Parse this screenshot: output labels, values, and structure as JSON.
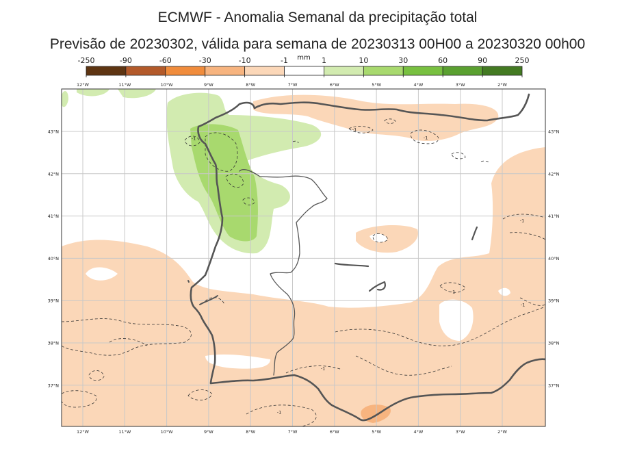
{
  "title": "ECMWF - Anomalia Semanal da precipitação total",
  "subtitle": "Previsão de 20230302, válida para semana de 20230313 00H00 a 20230320 00h00",
  "legend": {
    "unit": "mm",
    "ticks": [
      "-250",
      "-90",
      "-60",
      "-30",
      "-10",
      "-1",
      "1",
      "10",
      "30",
      "60",
      "90",
      "250"
    ],
    "colors": [
      "#5e3512",
      "#b35a2a",
      "#f08c3c",
      "#f7b47f",
      "#fbd7b8",
      "#ffffff",
      "#d2ebb0",
      "#a8d96e",
      "#78c040",
      "#5aa030",
      "#437a22"
    ]
  },
  "map": {
    "lon_labels": [
      "12°W",
      "11°W",
      "10°W",
      "9°W",
      "8°W",
      "7°W",
      "6°W",
      "5°W",
      "4°W",
      "3°W",
      "2°W"
    ],
    "lat_labels": [
      "43°N",
      "42°N",
      "41°N",
      "40°N",
      "39°N",
      "38°N",
      "37°N"
    ],
    "contour_label": "-1",
    "colors": {
      "dry_light": "#fbd7b8",
      "dry_medium": "#f7b47f",
      "wet_light": "#d2ebb0",
      "wet_medium": "#a8d96e",
      "wet_strong": "#8ccc50",
      "coast": "#555555"
    }
  }
}
